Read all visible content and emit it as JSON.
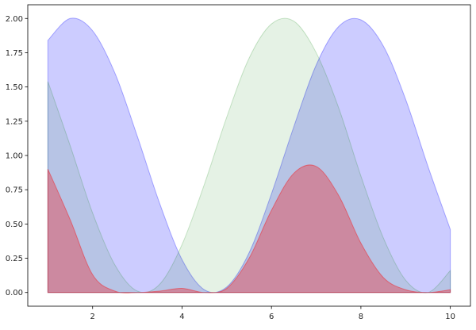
{
  "chart_data": {
    "type": "area",
    "title": "",
    "xlabel": "",
    "ylabel": "",
    "xlim": [
      0.55,
      10.45
    ],
    "ylim": [
      -0.1,
      2.1
    ],
    "x_ticks": [
      2,
      4,
      6,
      8,
      10
    ],
    "y_ticks": [
      0.0,
      0.25,
      0.5,
      0.75,
      1.0,
      1.25,
      1.5,
      1.75,
      2.0
    ],
    "x_tick_labels": [
      "2",
      "4",
      "6",
      "8",
      "10"
    ],
    "y_tick_labels": [
      "0.00",
      "0.25",
      "0.50",
      "0.75",
      "1.00",
      "1.25",
      "1.50",
      "1.75",
      "2.00"
    ],
    "grid": false,
    "legend": "none",
    "x": [
      1.0,
      1.5,
      2.0,
      2.5,
      3.0,
      3.5,
      4.0,
      4.5,
      5.0,
      5.5,
      6.0,
      6.5,
      7.0,
      7.5,
      8.0,
      8.5,
      9.0,
      9.5,
      10.0
    ],
    "series": [
      {
        "color": "#0000ff",
        "opacity": 0.2,
        "values": [
          1.84,
          2.0,
          1.91,
          1.6,
          1.14,
          0.65,
          0.24,
          0.02,
          0.04,
          0.29,
          0.72,
          1.21,
          1.66,
          1.94,
          1.99,
          1.8,
          1.41,
          0.92,
          0.46
        ]
      },
      {
        "color": "#008000",
        "opacity": 0.1,
        "values": [
          1.54,
          1.07,
          0.58,
          0.2,
          0.01,
          0.06,
          0.35,
          0.79,
          1.28,
          1.71,
          1.96,
          1.98,
          1.75,
          1.35,
          0.85,
          0.4,
          0.09,
          0.0,
          0.16
        ]
      },
      {
        "color": "#ff0000",
        "opacity": 0.3,
        "values": [
          0.9,
          0.53,
          0.13,
          0.01,
          0.0,
          0.01,
          0.03,
          0.0,
          0.03,
          0.25,
          0.6,
          0.87,
          0.92,
          0.71,
          0.36,
          0.11,
          0.02,
          0.0,
          0.02
        ]
      }
    ]
  }
}
